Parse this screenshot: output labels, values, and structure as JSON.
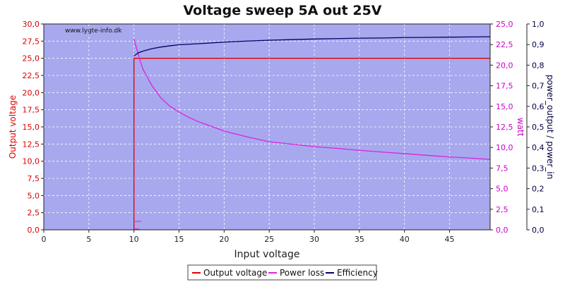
{
  "chart_data": {
    "type": "line",
    "title": "Voltage sweep 5A out 25V",
    "watermark": "www.lygte-info.dk",
    "xlabel": "Input voltage",
    "xlim": [
      0,
      49.5
    ],
    "xticks": [
      "0",
      "5",
      "10",
      "15",
      "20",
      "25",
      "30",
      "35",
      "40",
      "45"
    ],
    "y_left": {
      "label": "Output voltage",
      "lim": [
        0,
        30
      ],
      "ticks": [
        "0,0",
        "2,5",
        "5,0",
        "7,5",
        "10,0",
        "12,5",
        "15,0",
        "17,5",
        "20,0",
        "22,5",
        "25,0",
        "27,5",
        "30,0"
      ],
      "color": "#dd0000"
    },
    "y_right1": {
      "label": "watt",
      "lim": [
        0,
        25
      ],
      "ticks": [
        "0,0",
        "2,5",
        "5,0",
        "7,5",
        "10,0",
        "12,5",
        "15,0",
        "17,5",
        "20,0",
        "22,5",
        "25,0"
      ],
      "color": "#cc00cc"
    },
    "y_right2": {
      "label": "power_output / power_in",
      "lim": [
        0,
        1
      ],
      "ticks": [
        "0,0",
        "0,1",
        "0,2",
        "0,3",
        "0,4",
        "0,5",
        "0,6",
        "0,7",
        "0,8",
        "0,9",
        "1,0"
      ],
      "color": "#000044"
    },
    "grid": true,
    "legend_position": "bottom-center",
    "plot_background": "#a8a8ee",
    "series": [
      {
        "name": "Output voltage",
        "axis": "left",
        "color": "#dd0000",
        "points": [
          [
            10.0,
            0.0
          ],
          [
            10.0,
            25.0
          ],
          [
            49.5,
            25.0
          ]
        ]
      },
      {
        "name": "Power loss",
        "axis": "right1",
        "color": "#dd22dd",
        "points": [
          [
            10.0,
            23.2
          ],
          [
            10.3,
            22.0
          ],
          [
            10.7,
            20.5
          ],
          [
            11.0,
            19.5
          ],
          [
            11.5,
            18.5
          ],
          [
            12.0,
            17.5
          ],
          [
            13.0,
            16.0
          ],
          [
            14.0,
            15.0
          ],
          [
            15.0,
            14.3
          ],
          [
            16.0,
            13.7
          ],
          [
            17.0,
            13.2
          ],
          [
            18.0,
            12.8
          ],
          [
            20.0,
            12.0
          ],
          [
            22.5,
            11.3
          ],
          [
            25.0,
            10.7
          ],
          [
            27.5,
            10.4
          ],
          [
            30.0,
            10.1
          ],
          [
            32.5,
            9.9
          ],
          [
            35.0,
            9.65
          ],
          [
            37.5,
            9.45
          ],
          [
            40.0,
            9.25
          ],
          [
            42.5,
            9.05
          ],
          [
            45.0,
            8.85
          ],
          [
            47.5,
            8.7
          ],
          [
            49.5,
            8.55
          ]
        ]
      },
      {
        "name": "Efficiency",
        "axis": "right2",
        "color": "#000066",
        "points": [
          [
            10.0,
            0.845
          ],
          [
            10.5,
            0.86
          ],
          [
            11.0,
            0.868
          ],
          [
            12.0,
            0.88
          ],
          [
            13.0,
            0.888
          ],
          [
            14.0,
            0.894
          ],
          [
            15.0,
            0.899
          ],
          [
            17.5,
            0.905
          ],
          [
            20.0,
            0.912
          ],
          [
            22.5,
            0.917
          ],
          [
            25.0,
            0.921
          ],
          [
            27.5,
            0.924
          ],
          [
            30.0,
            0.927
          ],
          [
            32.5,
            0.929
          ],
          [
            35.0,
            0.931
          ],
          [
            37.5,
            0.932
          ],
          [
            40.0,
            0.934
          ],
          [
            42.5,
            0.935
          ],
          [
            45.0,
            0.936
          ],
          [
            47.5,
            0.937
          ],
          [
            49.5,
            0.938
          ]
        ]
      }
    ],
    "artifacts": [
      {
        "axis": "right1",
        "color": "#dd22dd",
        "points": [
          [
            10.1,
            1.0
          ],
          [
            10.8,
            1.05
          ]
        ]
      },
      {
        "axis": "right1",
        "color": "#dd22dd",
        "points": [
          [
            10.05,
            0.1
          ],
          [
            10.6,
            0.1
          ]
        ]
      }
    ]
  }
}
